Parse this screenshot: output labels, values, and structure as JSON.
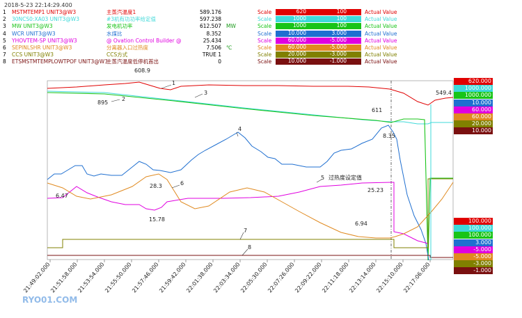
{
  "header": {
    "timestamp": "2018-5-23 22:14:29.400",
    "rows": [
      {
        "idx": "1",
        "tag": "MSTMTEMP1 UNIT3@W3",
        "desc": "主蒸汽温度1",
        "value": "589.176",
        "unit": "",
        "scale": "Scale",
        "hi": "620",
        "lo": "100",
        "av": "Actual Value",
        "tagColor": "#e00000",
        "boxColor": "#e00000"
      },
      {
        "idx": "2",
        "tag": "30NCS0:XA03 UNIT3@W3",
        "desc": "#3机有功功率给定值",
        "value": "597.238",
        "unit": "",
        "scale": "Scale",
        "hi": "1000",
        "lo": "100",
        "av": "Actual Value",
        "tagColor": "#3fd9d9",
        "boxColor": "#3fd9d9"
      },
      {
        "idx": "3",
        "tag": "MW UNIT3@W3",
        "desc": "发电机功率",
        "value": "612.507",
        "unit": "MW",
        "scale": "Scale",
        "hi": "1000",
        "lo": "100",
        "av": "Actual Value",
        "tagColor": "#18c418",
        "boxColor": "#18c418"
      },
      {
        "idx": "4",
        "tag": "WCR UNIT3@W3",
        "desc": "水煤比",
        "value": "8.352",
        "unit": "",
        "scale": "Scale",
        "hi": "10.000",
        "lo": "3.000",
        "av": "Actual Value",
        "tagColor": "#1f6fd0",
        "boxColor": "#1f6fd0"
      },
      {
        "idx": "5",
        "tag": "YHOVTEM-SP UNIT3@W3",
        "desc": "@ Ovation Control Builder @",
        "value": "25.434",
        "unit": "",
        "scale": "Scale",
        "hi": "60.000",
        "lo": "-5.000",
        "av": "Actual Value",
        "tagColor": "#e000e0",
        "boxColor": "#e000e0"
      },
      {
        "idx": "6",
        "tag": "SEPINLSHR UNIT3@W3",
        "desc": "分离器入口过热度",
        "value": "7.506",
        "unit": "℃",
        "scale": "Scale",
        "hi": "60.000",
        "lo": "-5.000",
        "av": "Actual Value",
        "tagColor": "#e08a20",
        "boxColor": "#e08a20"
      },
      {
        "idx": "7",
        "tag": "CCS UNIT3@W3",
        "desc": "CCS方式",
        "value": "TRUE  1",
        "unit": "",
        "scale": "Scale",
        "hi": "20.000",
        "lo": "-3.000",
        "av": "Actual Value",
        "tagColor": "#808000",
        "boxColor": "#808000"
      },
      {
        "idx": "8",
        "tag": "ETSMSTMTEMPLOWTPOF UNIT3@W3",
        "desc": "主蒸汽温度低停机首出",
        "value": "0",
        "unit": "",
        "scale": "Scale",
        "hi": "10.000",
        "lo": "-1.000",
        "av": "Actual Value",
        "tagColor": "#7a1010",
        "boxColor": "#7a1010"
      }
    ]
  },
  "annotations": {
    "a1": "608.9",
    "a2": "895",
    "a3": "611",
    "a4": "8.35",
    "a5": "549.4",
    "a6": "28.3",
    "a7": "6.47",
    "a8": "15.78",
    "a9": "25.23",
    "a10": "6.94",
    "n1": "1",
    "n2": "2",
    "n3": "3",
    "n4": "4",
    "n5": "5",
    "n6": "6",
    "n7": "7",
    "n8": "8",
    "label5": "过热度设定值"
  },
  "right_axis_top": [
    {
      "text": "620.000",
      "color": "#e00000"
    },
    {
      "text": "1000.000",
      "color": "#3fd9d9"
    },
    {
      "text": "1000.000",
      "color": "#18c418"
    },
    {
      "text": "10.000",
      "color": "#1f6fd0"
    },
    {
      "text": "60.000",
      "color": "#e000e0"
    },
    {
      "text": "60.000",
      "color": "#e08a20"
    },
    {
      "text": "20.000",
      "color": "#808000"
    },
    {
      "text": "10.000",
      "color": "#7a1010"
    }
  ],
  "right_axis_bottom": [
    {
      "text": "100.000",
      "color": "#e00000"
    },
    {
      "text": "100.000",
      "color": "#3fd9d9"
    },
    {
      "text": "100.000",
      "color": "#18c418"
    },
    {
      "text": "3.000",
      "color": "#1f6fd0"
    },
    {
      "text": "-5.000",
      "color": "#e000e0"
    },
    {
      "text": "-5.000",
      "color": "#e08a20"
    },
    {
      "text": "-3.000",
      "color": "#808000"
    },
    {
      "text": "-1.000",
      "color": "#7a1010"
    }
  ],
  "x_ticks": [
    "21:49:02.000",
    "21:51:58.000",
    "21:53:54.000",
    "21:55:50.000",
    "21:57:46.000",
    "21:59:42.000",
    "22:01:38.000",
    "22:03:34.000",
    "22:05:30.000",
    "22:07:26.000",
    "22:09:22.000",
    "22:11:18.000",
    "22:13:14.000",
    "22:15:10.000",
    "22:17:06.000"
  ],
  "watermark": "RYO01.COM"
}
